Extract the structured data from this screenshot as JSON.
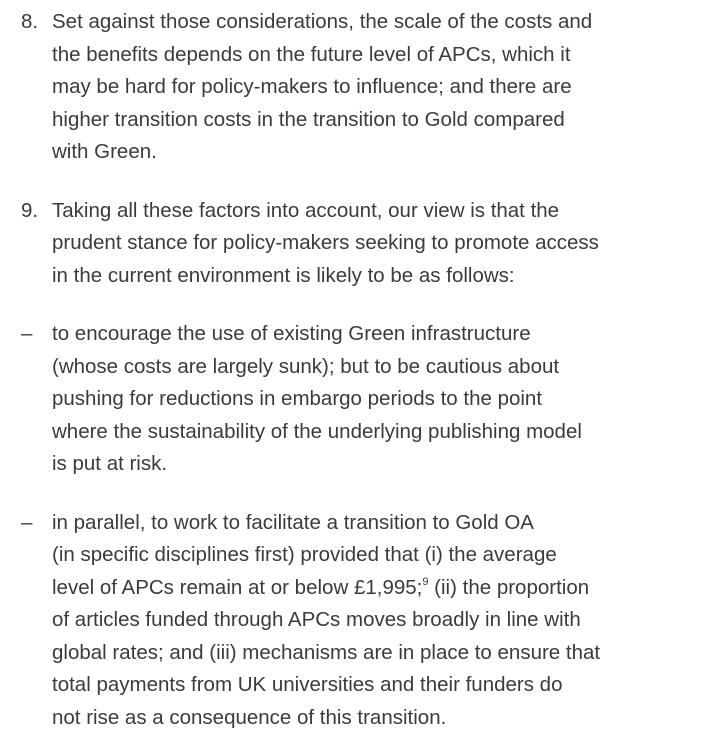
{
  "items": [
    {
      "marker": "8.",
      "lines": [
        "Set against those considerations, the scale of the costs and",
        "the benefits depends on the future level of APCs, which it",
        "may be hard for policy-makers to influence; and there are",
        "higher transition costs in the transition to Gold compared",
        "with Green."
      ]
    },
    {
      "marker": "9.",
      "lines": [
        "Taking all these factors into account, our view is that the",
        "prudent stance for policy-makers seeking to promote access",
        "in the current environment is likely to be as follows:"
      ]
    },
    {
      "marker": "–",
      "lines": [
        "to encourage the use of existing Green infrastructure",
        "(whose costs are largely sunk); but to be cautious about",
        "pushing for reductions in embargo periods to the point",
        "where the sustainability of the underlying publishing model",
        "is put at risk."
      ]
    },
    {
      "marker": "–",
      "lines": [
        "in parallel, to work to facilitate a transition to Gold OA",
        "(in specific disciplines first) provided that (i) the average",
        {
          "before": "level of APCs remain at or below £1,995;",
          "note": "9",
          "after": " (ii) the proportion"
        },
        "of articles funded through APCs moves broadly in line with",
        "global rates; and (iii) mechanisms are in place to ensure that",
        "total payments from UK universities and their funders do",
        "not rise as a consequence of this transition."
      ]
    }
  ]
}
